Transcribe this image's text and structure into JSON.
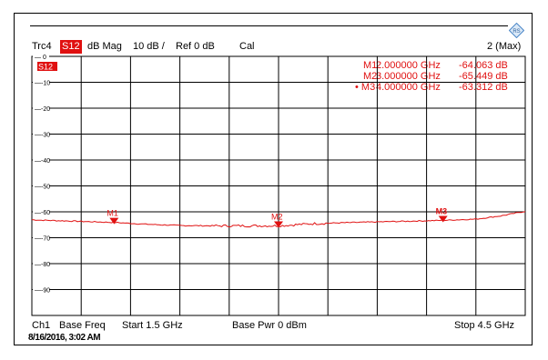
{
  "window": {
    "trace": "Trc4",
    "parameter": "S12",
    "format": "dB Mag",
    "scale": "10 dB /",
    "ref": "Ref 0 dB",
    "cal": "Cal",
    "trace_count": "2 (Max)",
    "trace_badge": "S12"
  },
  "footer": {
    "channel": "Ch1",
    "base_freq": "Base Freq",
    "start": "Start  1.5 GHz",
    "base_pwr": "Base Pwr   0 dBm",
    "stop": "Stop  4.5 GHz",
    "timestamp": "8/16/2016, 3:02 AM"
  },
  "markers": [
    {
      "name": "M1",
      "freq": "2.000000  GHz",
      "value": "-64.063  dB",
      "active": false
    },
    {
      "name": "M2",
      "freq": "3.000000  GHz",
      "value": "-65.449  dB",
      "active": false
    },
    {
      "name": "M3",
      "freq": "4.000000  GHz",
      "value": "-63.312  dB",
      "active": true
    }
  ],
  "colors": {
    "trace": "#e01010",
    "grid": "#000000",
    "text": "#000000"
  },
  "chart_data": {
    "type": "line",
    "title": "",
    "xlabel": "",
    "ylabel": "",
    "xlim": [
      1.5,
      4.5
    ],
    "ylim": [
      -100,
      0
    ],
    "x_unit": "GHz",
    "y_unit": "dB",
    "grid": true,
    "y_ticks": [
      0,
      -10,
      -20,
      -30,
      -40,
      -50,
      -60,
      -70,
      -80,
      -90,
      -100
    ],
    "y_tick_labels": [
      "0",
      "-10",
      "-20",
      "-30",
      "-40",
      "-50",
      "-60",
      "-70",
      "-80",
      "-90",
      ""
    ],
    "series": [
      {
        "name": "S12",
        "x": [
          1.5,
          1.7,
          1.9,
          2.0,
          2.2,
          2.4,
          2.6,
          2.8,
          3.0,
          3.2,
          3.4,
          3.6,
          3.8,
          4.0,
          4.2,
          4.35,
          4.5
        ],
        "y": [
          -63.1,
          -63.5,
          -63.9,
          -64.1,
          -64.8,
          -65.3,
          -65.4,
          -65.4,
          -65.4,
          -64.6,
          -64.2,
          -63.9,
          -63.6,
          -63.3,
          -62.8,
          -61.6,
          -59.8
        ]
      }
    ],
    "marker_points": [
      {
        "label": "M1",
        "x": 2.0,
        "y": -64.063
      },
      {
        "label": "M2",
        "x": 3.0,
        "y": -65.449
      },
      {
        "label": "M3",
        "x": 4.0,
        "y": -63.312
      }
    ]
  }
}
